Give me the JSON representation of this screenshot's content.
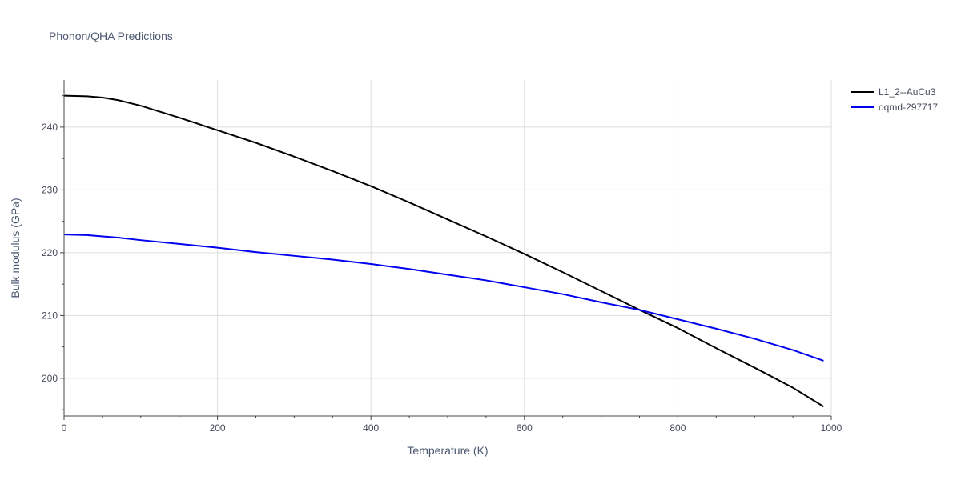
{
  "chart_data": {
    "type": "line",
    "title": "Phonon/QHA Predictions",
    "xlabel": "Temperature (K)",
    "ylabel": "Bulk modulus (GPa)",
    "xlim": [
      0,
      1000
    ],
    "ylim": [
      194,
      247.5
    ],
    "xticks": [
      0,
      200,
      400,
      600,
      800,
      1000
    ],
    "yticks": [
      200,
      210,
      220,
      230,
      240
    ],
    "grid": true,
    "legend_position": "top-right",
    "series": [
      {
        "name": "L1_2--AuCu3",
        "color": "#000000",
        "x": [
          0,
          30,
          50,
          70,
          100,
          150,
          200,
          250,
          300,
          350,
          400,
          450,
          500,
          550,
          600,
          650,
          700,
          750,
          800,
          850,
          900,
          950,
          990
        ],
        "y": [
          245.0,
          244.9,
          244.7,
          244.3,
          243.4,
          241.5,
          239.5,
          237.5,
          235.3,
          233.0,
          230.6,
          228.0,
          225.3,
          222.6,
          219.8,
          216.9,
          213.9,
          210.9,
          208.0,
          204.8,
          201.7,
          198.5,
          195.5
        ]
      },
      {
        "name": "oqmd-297717",
        "color": "#0000ee",
        "x": [
          0,
          30,
          50,
          70,
          100,
          150,
          200,
          250,
          300,
          350,
          400,
          450,
          500,
          550,
          600,
          650,
          700,
          750,
          800,
          850,
          900,
          950,
          990
        ],
        "y": [
          222.9,
          222.8,
          222.6,
          222.4,
          222.0,
          221.4,
          220.8,
          220.1,
          219.5,
          218.9,
          218.2,
          217.4,
          216.5,
          215.6,
          214.5,
          213.4,
          212.1,
          210.9,
          209.4,
          207.9,
          206.3,
          204.5,
          202.8
        ]
      }
    ]
  }
}
